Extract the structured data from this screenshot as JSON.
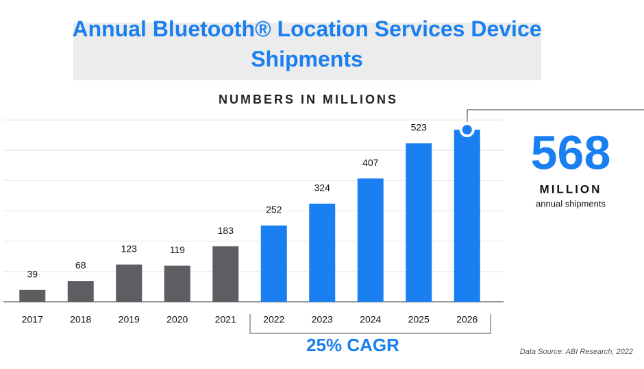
{
  "chart_data": {
    "type": "bar",
    "title": "Annual Bluetooth® Location Services Device Shipments",
    "subtitle": "NUMBERS IN MILLIONS",
    "categories": [
      "2017",
      "2018",
      "2019",
      "2020",
      "2021",
      "2022",
      "2023",
      "2024",
      "2025",
      "2026"
    ],
    "values": [
      39,
      68,
      123,
      119,
      183,
      252,
      324,
      407,
      523,
      568
    ],
    "value_labels": [
      "39",
      "68",
      "123",
      "119",
      "183",
      "252",
      "324",
      "407",
      "523",
      null
    ],
    "colors": [
      "#5e5e62",
      "#5e5e62",
      "#5e5e62",
      "#5e5e62",
      "#5e5e62",
      "#1a7ff0",
      "#1a7ff0",
      "#1a7ff0",
      "#1a7ff0",
      "#1a7ff0"
    ],
    "ylim": [
      0,
      600
    ],
    "yticks": [
      0,
      100,
      200,
      300,
      400,
      500,
      600
    ],
    "ytick_labels": false,
    "grid": true,
    "callout": {
      "value": "568",
      "unit": "MILLION",
      "caption": "annual shipments"
    },
    "bracket_label": "25% CAGR",
    "source": "Data Source: ABI Research, 2022"
  }
}
